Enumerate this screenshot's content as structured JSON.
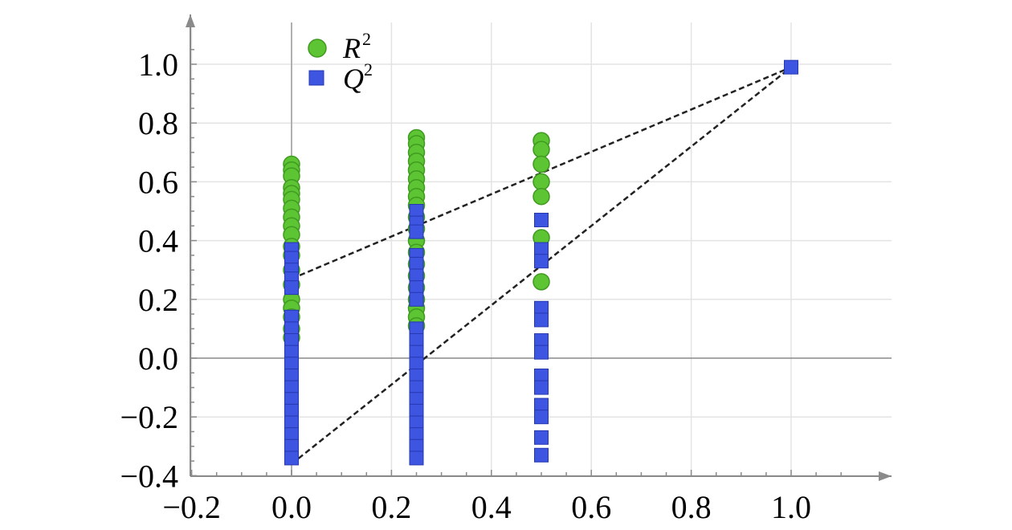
{
  "chart_data": {
    "type": "scatter",
    "title": "",
    "xlabel": "",
    "ylabel": "",
    "xlim": [
      -0.2,
      1.2
    ],
    "ylim": [
      -0.4,
      1.15
    ],
    "x_ticks": [
      "−0.2",
      "0.0",
      "0.2",
      "0.4",
      "0.6",
      "0.8",
      "1.0"
    ],
    "x_tick_values": [
      -0.2,
      0.0,
      0.2,
      0.4,
      0.6,
      0.8,
      1.0
    ],
    "y_ticks": [
      "−0.4",
      "−0.2",
      "0.0",
      "0.2",
      "0.4",
      "0.6",
      "0.8",
      "1.0"
    ],
    "y_tick_values": [
      -0.4,
      -0.2,
      0.0,
      0.2,
      0.4,
      0.6,
      0.8,
      1.0
    ],
    "grid": true,
    "legend_position": "top-left",
    "colors": {
      "r2": "#5dc534",
      "q2": "#3d55e0",
      "r2_edge": "#3f9a1f",
      "q2_edge": "#2638b0",
      "grid": "#e3e3e3",
      "axis": "#8a8a8a"
    },
    "series": [
      {
        "name": "R",
        "superscript": "2",
        "marker": "circle",
        "points": [
          [
            0.0,
            0.66
          ],
          [
            0.0,
            0.64
          ],
          [
            0.0,
            0.62
          ],
          [
            0.0,
            0.58
          ],
          [
            0.0,
            0.56
          ],
          [
            0.0,
            0.54
          ],
          [
            0.0,
            0.51
          ],
          [
            0.0,
            0.48
          ],
          [
            0.0,
            0.45
          ],
          [
            0.0,
            0.42
          ],
          [
            0.0,
            0.38
          ],
          [
            0.0,
            0.35
          ],
          [
            0.0,
            0.3
          ],
          [
            0.0,
            0.25
          ],
          [
            0.0,
            0.2
          ],
          [
            0.0,
            0.17
          ],
          [
            0.0,
            0.14
          ],
          [
            0.0,
            0.1
          ],
          [
            0.0,
            0.07
          ],
          [
            0.25,
            0.75
          ],
          [
            0.25,
            0.73
          ],
          [
            0.25,
            0.7
          ],
          [
            0.25,
            0.67
          ],
          [
            0.25,
            0.64
          ],
          [
            0.25,
            0.61
          ],
          [
            0.25,
            0.58
          ],
          [
            0.25,
            0.55
          ],
          [
            0.25,
            0.52
          ],
          [
            0.25,
            0.48
          ],
          [
            0.25,
            0.44
          ],
          [
            0.25,
            0.4
          ],
          [
            0.25,
            0.36
          ],
          [
            0.25,
            0.32
          ],
          [
            0.25,
            0.28
          ],
          [
            0.25,
            0.24
          ],
          [
            0.25,
            0.2
          ],
          [
            0.25,
            0.17
          ],
          [
            0.25,
            0.14
          ],
          [
            0.25,
            0.11
          ],
          [
            0.5,
            0.74
          ],
          [
            0.5,
            0.71
          ],
          [
            0.5,
            0.66
          ],
          [
            0.5,
            0.6
          ],
          [
            0.5,
            0.55
          ],
          [
            0.5,
            0.41
          ],
          [
            0.5,
            0.26
          ]
        ]
      },
      {
        "name": "Q",
        "superscript": "2",
        "marker": "square",
        "points": [
          [
            0.0,
            0.37
          ],
          [
            0.0,
            0.34
          ],
          [
            0.0,
            0.3
          ],
          [
            0.0,
            0.27
          ],
          [
            0.0,
            0.24
          ],
          [
            0.0,
            0.14
          ],
          [
            0.0,
            0.1
          ],
          [
            0.0,
            0.06
          ],
          [
            0.0,
            0.02
          ],
          [
            0.0,
            -0.02
          ],
          [
            0.0,
            -0.06
          ],
          [
            0.0,
            -0.1
          ],
          [
            0.0,
            -0.14
          ],
          [
            0.0,
            -0.18
          ],
          [
            0.0,
            -0.22
          ],
          [
            0.0,
            -0.26
          ],
          [
            0.0,
            -0.3
          ],
          [
            0.0,
            -0.34
          ],
          [
            0.25,
            0.5
          ],
          [
            0.25,
            0.46
          ],
          [
            0.25,
            0.43
          ],
          [
            0.25,
            0.35
          ],
          [
            0.25,
            0.32
          ],
          [
            0.25,
            0.28
          ],
          [
            0.25,
            0.24
          ],
          [
            0.25,
            0.2
          ],
          [
            0.25,
            0.1
          ],
          [
            0.25,
            0.06
          ],
          [
            0.25,
            0.02
          ],
          [
            0.25,
            -0.02
          ],
          [
            0.25,
            -0.06
          ],
          [
            0.25,
            -0.1
          ],
          [
            0.25,
            -0.14
          ],
          [
            0.25,
            -0.18
          ],
          [
            0.25,
            -0.22
          ],
          [
            0.25,
            -0.26
          ],
          [
            0.25,
            -0.3
          ],
          [
            0.25,
            -0.34
          ],
          [
            0.5,
            0.47
          ],
          [
            0.5,
            0.37
          ],
          [
            0.5,
            0.33
          ],
          [
            0.5,
            0.17
          ],
          [
            0.5,
            0.13
          ],
          [
            0.5,
            0.06
          ],
          [
            0.5,
            0.02
          ],
          [
            0.5,
            -0.06
          ],
          [
            0.5,
            -0.1
          ],
          [
            0.5,
            -0.16
          ],
          [
            0.5,
            -0.2
          ],
          [
            0.5,
            -0.27
          ],
          [
            0.5,
            -0.33
          ],
          [
            1.0,
            0.99
          ]
        ]
      }
    ],
    "regression_lines": [
      {
        "series": "R",
        "from": [
          0.0,
          0.27
        ],
        "to": [
          1.0,
          0.99
        ],
        "style": "dashed"
      },
      {
        "series": "Q",
        "from": [
          0.0,
          -0.36
        ],
        "to": [
          1.0,
          0.99
        ],
        "style": "dashed"
      }
    ]
  }
}
